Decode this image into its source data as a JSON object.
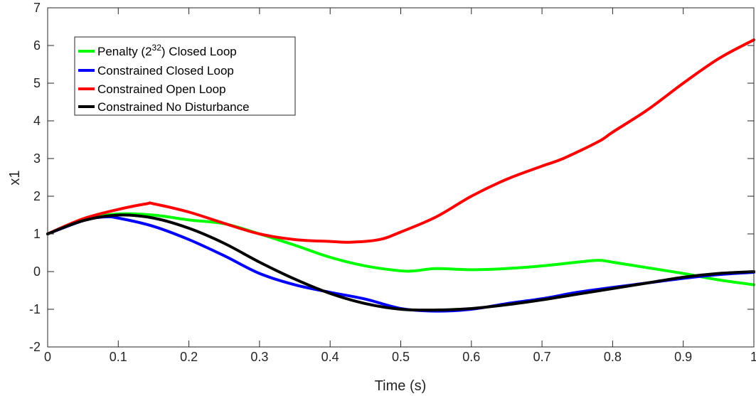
{
  "chart_data": {
    "type": "line",
    "xlabel": "Time (s)",
    "ylabel": "x1",
    "xlim": [
      0,
      1
    ],
    "ylim": [
      -2,
      7
    ],
    "xticks": [
      0,
      0.1,
      0.2,
      0.3,
      0.4,
      0.5,
      0.6,
      0.7,
      0.8,
      0.9,
      1
    ],
    "xtick_labels": [
      "0",
      "0.1",
      "0.2",
      "0.3",
      "0.4",
      "0.5",
      "0.6",
      "0.7",
      "0.8",
      "0.9",
      "1"
    ],
    "yticks": [
      -2,
      -1,
      0,
      1,
      2,
      3,
      4,
      5,
      6,
      7
    ],
    "ytick_labels": [
      "-2",
      "-1",
      "0",
      "1",
      "2",
      "3",
      "4",
      "5",
      "6",
      "7"
    ],
    "grid": false,
    "legend_position": "top-left",
    "legend": {
      "penalty_prefix": "Penalty (2",
      "penalty_exponent": "32",
      "penalty_suffix": ") Closed Loop",
      "constrained_closed": "Constrained Closed Loop",
      "constrained_open": "Constrained Open Loop",
      "constrained_nodist": "Constrained No Disturbance"
    },
    "series": [
      {
        "key": "penalty",
        "color": "#00ff00",
        "x": [
          0,
          0.05,
          0.1,
          0.15,
          0.2,
          0.25,
          0.3,
          0.35,
          0.4,
          0.45,
          0.5,
          0.52,
          0.55,
          0.6,
          0.65,
          0.7,
          0.75,
          0.78,
          0.8,
          0.85,
          0.9,
          0.95,
          1
        ],
        "y": [
          1.0,
          1.38,
          1.53,
          1.5,
          1.37,
          1.27,
          1.0,
          0.7,
          0.38,
          0.15,
          0.02,
          0.02,
          0.08,
          0.05,
          0.08,
          0.15,
          0.25,
          0.3,
          0.25,
          0.1,
          -0.05,
          -0.22,
          -0.35
        ]
      },
      {
        "key": "constrained_closed",
        "color": "#0000ff",
        "x": [
          0,
          0.05,
          0.08,
          0.1,
          0.15,
          0.2,
          0.25,
          0.3,
          0.35,
          0.4,
          0.45,
          0.5,
          0.55,
          0.6,
          0.65,
          0.7,
          0.75,
          0.8,
          0.85,
          0.9,
          0.95,
          1
        ],
        "y": [
          1.0,
          1.35,
          1.45,
          1.42,
          1.2,
          0.85,
          0.42,
          -0.05,
          -0.35,
          -0.55,
          -0.73,
          -0.98,
          -1.05,
          -1.0,
          -0.85,
          -0.72,
          -0.55,
          -0.42,
          -0.3,
          -0.18,
          -0.08,
          -0.02
        ]
      },
      {
        "key": "constrained_open",
        "color": "#ff0000",
        "x": [
          0,
          0.05,
          0.1,
          0.14,
          0.15,
          0.2,
          0.25,
          0.3,
          0.35,
          0.4,
          0.43,
          0.47,
          0.5,
          0.55,
          0.6,
          0.65,
          0.7,
          0.73,
          0.78,
          0.8,
          0.85,
          0.9,
          0.95,
          1
        ],
        "y": [
          1.0,
          1.4,
          1.65,
          1.8,
          1.8,
          1.58,
          1.28,
          1.0,
          0.85,
          0.8,
          0.78,
          0.85,
          1.05,
          1.45,
          2.0,
          2.45,
          2.8,
          3.0,
          3.45,
          3.7,
          4.3,
          5.0,
          5.65,
          6.15
        ]
      },
      {
        "key": "constrained_nodist",
        "color": "#000000",
        "x": [
          0,
          0.05,
          0.1,
          0.15,
          0.2,
          0.25,
          0.3,
          0.35,
          0.4,
          0.45,
          0.5,
          0.55,
          0.6,
          0.65,
          0.7,
          0.75,
          0.8,
          0.85,
          0.9,
          0.95,
          1
        ],
        "y": [
          1.0,
          1.35,
          1.5,
          1.42,
          1.15,
          0.75,
          0.25,
          -0.2,
          -0.58,
          -0.85,
          -1.0,
          -1.02,
          -0.98,
          -0.88,
          -0.75,
          -0.6,
          -0.45,
          -0.3,
          -0.15,
          -0.05,
          0.0
        ]
      }
    ]
  }
}
